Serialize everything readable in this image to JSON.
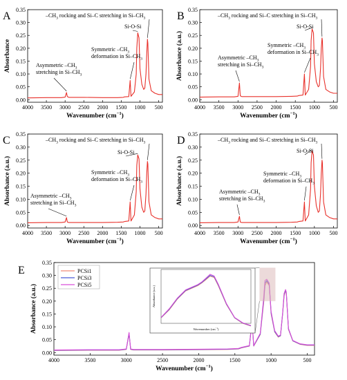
{
  "chart_data": [
    {
      "panel": "A",
      "type": "line",
      "xlabel": "Wavenumber (cm⁻¹)",
      "ylabel": "Absorbance",
      "xlim": [
        4000,
        400
      ],
      "ylim": [
        -0.01,
        0.35
      ],
      "x_reversed": true,
      "xticks": [
        4000,
        3500,
        3000,
        2500,
        2000,
        1500,
        1000,
        500
      ],
      "yticks": [
        0.0,
        0.05,
        0.1,
        0.15,
        0.2,
        0.25,
        0.3,
        0.35
      ],
      "series": [
        {
          "color": "#e8302a",
          "x": [
            4000,
            3500,
            3100,
            3000,
            2962,
            2940,
            2900,
            2500,
            2000,
            1600,
            1450,
            1410,
            1300,
            1262,
            1240,
            1150,
            1100,
            1085,
            1060,
            1025,
            1000,
            950,
            900,
            870,
            840,
            820,
            800,
            790,
            760,
            700,
            600,
            500,
            400
          ],
          "y": [
            0.007,
            0.008,
            0.008,
            0.01,
            0.028,
            0.012,
            0.009,
            0.009,
            0.008,
            0.008,
            0.009,
            0.011,
            0.012,
            0.075,
            0.013,
            0.03,
            0.1,
            0.2,
            0.26,
            0.24,
            0.12,
            0.06,
            0.04,
            0.045,
            0.1,
            0.18,
            0.235,
            0.22,
            0.08,
            0.035,
            0.025,
            0.02,
            0.02
          ]
        }
      ],
      "annotations": [
        {
          "label": "–CH3 rocking and Si–C stretching in Si–CH3",
          "x": 800,
          "y": 0.235
        },
        {
          "label": "Si-O-Si",
          "x": 1060,
          "y": 0.26
        },
        {
          "label": "Symmetric –CH3 deformation in Si–CH3",
          "x": 1262,
          "y": 0.075
        },
        {
          "label": "Asymmetric –CH3 stretching in Si–CH3",
          "x": 2962,
          "y": 0.028
        }
      ]
    },
    {
      "panel": "B",
      "type": "line",
      "xlabel": "Wavenumber (cm⁻¹)",
      "ylabel": "Absorbance (a.u.)",
      "xlim": [
        4000,
        400
      ],
      "ylim": [
        -0.01,
        0.35
      ],
      "x_reversed": true,
      "xticks": [
        4000,
        3500,
        3000,
        2500,
        2000,
        1500,
        1000,
        500
      ],
      "yticks": [
        0.0,
        0.05,
        0.1,
        0.15,
        0.2,
        0.25,
        0.3,
        0.35
      ],
      "series": [
        {
          "color": "#e8302a",
          "x": [
            4000,
            3500,
            3100,
            3000,
            2962,
            2940,
            2900,
            2500,
            2000,
            1600,
            1450,
            1410,
            1300,
            1262,
            1240,
            1150,
            1100,
            1085,
            1060,
            1025,
            1000,
            950,
            900,
            870,
            840,
            820,
            800,
            790,
            760,
            700,
            600,
            500,
            400
          ],
          "y": [
            0.01,
            0.011,
            0.011,
            0.013,
            0.065,
            0.015,
            0.012,
            0.012,
            0.012,
            0.013,
            0.014,
            0.016,
            0.018,
            0.1,
            0.018,
            0.04,
            0.13,
            0.23,
            0.275,
            0.26,
            0.14,
            0.07,
            0.05,
            0.055,
            0.12,
            0.2,
            0.24,
            0.23,
            0.09,
            0.04,
            0.03,
            0.025,
            0.025
          ]
        }
      ],
      "annotations": [
        {
          "label": "–CH3 rocking and Si–C stretching in Si–CH3",
          "x": 800,
          "y": 0.24
        },
        {
          "label": "Si-O-Si",
          "x": 1060,
          "y": 0.275
        },
        {
          "label": "Symmetric –CH3 deformation in Si–CH3",
          "x": 1262,
          "y": 0.1
        },
        {
          "label": "Asymmetric –CH3 stretching in Si–CH3",
          "x": 2962,
          "y": 0.065
        }
      ]
    },
    {
      "panel": "C",
      "type": "line",
      "xlabel": "Wavenumber (cm⁻¹)",
      "ylabel": "Absorbance (a.u.)",
      "xlim": [
        4000,
        400
      ],
      "ylim": [
        -0.01,
        0.35
      ],
      "x_reversed": true,
      "xticks": [
        4000,
        3500,
        3000,
        2500,
        2000,
        1500,
        1000,
        500
      ],
      "yticks": [
        0.0,
        0.05,
        0.1,
        0.15,
        0.2,
        0.25,
        0.3,
        0.35
      ],
      "series": [
        {
          "color": "#e8302a",
          "x": [
            4000,
            3500,
            3100,
            3000,
            2962,
            2940,
            2900,
            2500,
            2000,
            1600,
            1450,
            1410,
            1300,
            1262,
            1240,
            1150,
            1100,
            1085,
            1060,
            1025,
            1000,
            950,
            900,
            870,
            840,
            820,
            800,
            790,
            760,
            700,
            600,
            500,
            400
          ],
          "y": [
            0.01,
            0.011,
            0.011,
            0.013,
            0.03,
            0.013,
            0.011,
            0.011,
            0.011,
            0.012,
            0.013,
            0.015,
            0.017,
            0.09,
            0.017,
            0.04,
            0.13,
            0.23,
            0.27,
            0.255,
            0.14,
            0.07,
            0.05,
            0.055,
            0.12,
            0.2,
            0.245,
            0.235,
            0.09,
            0.04,
            0.03,
            0.025,
            0.025
          ]
        }
      ],
      "annotations": [
        {
          "label": "–CH3 rocking and Si–C stretching in Si–CH3",
          "x": 800,
          "y": 0.245
        },
        {
          "label": "Si-O-Si",
          "x": 1060,
          "y": 0.27
        },
        {
          "label": "Symmetric –CH3 deformation in Si–CH3",
          "x": 1262,
          "y": 0.09
        },
        {
          "label": "Asymmetric –CH3 stretching in Si–CH3",
          "x": 2962,
          "y": 0.03
        }
      ]
    },
    {
      "panel": "D",
      "type": "line",
      "xlabel": "Wavenumber (cm⁻¹)",
      "ylabel": "Absorbance (a.u.)",
      "xlim": [
        4000,
        400
      ],
      "ylim": [
        -0.01,
        0.35
      ],
      "x_reversed": true,
      "xticks": [
        4000,
        3500,
        3000,
        2500,
        2000,
        1500,
        1000,
        500
      ],
      "yticks": [
        0.0,
        0.05,
        0.1,
        0.15,
        0.2,
        0.25,
        0.3,
        0.35
      ],
      "series": [
        {
          "color": "#e8302a",
          "x": [
            4000,
            3500,
            3100,
            3000,
            2962,
            2940,
            2900,
            2500,
            2000,
            1600,
            1450,
            1410,
            1300,
            1262,
            1240,
            1150,
            1100,
            1085,
            1060,
            1025,
            1000,
            950,
            900,
            870,
            840,
            820,
            800,
            790,
            760,
            700,
            600,
            500,
            400
          ],
          "y": [
            0.01,
            0.011,
            0.011,
            0.013,
            0.035,
            0.013,
            0.011,
            0.011,
            0.011,
            0.012,
            0.013,
            0.015,
            0.017,
            0.09,
            0.017,
            0.04,
            0.14,
            0.24,
            0.285,
            0.27,
            0.15,
            0.075,
            0.05,
            0.055,
            0.12,
            0.2,
            0.25,
            0.24,
            0.09,
            0.04,
            0.03,
            0.025,
            0.025
          ]
        }
      ],
      "annotations": [
        {
          "label": "–CH3 rocking and Si–C stretching in Si–CH3",
          "x": 800,
          "y": 0.25
        },
        {
          "label": "Si-O-Si",
          "x": 1060,
          "y": 0.285
        },
        {
          "label": "Symmetric –CH3 deformation in Si–CH3",
          "x": 1262,
          "y": 0.09
        },
        {
          "label": "Asymmetric –CH3 stretching in Si–CH3",
          "x": 2962,
          "y": 0.035
        }
      ]
    },
    {
      "panel": "E",
      "type": "line",
      "xlabel": "Wavenumber (cm⁻¹)",
      "ylabel": "Absorbance (a.u.)",
      "xlim": [
        4000,
        400
      ],
      "ylim": [
        -0.01,
        0.35
      ],
      "x_reversed": true,
      "xticks": [
        4000,
        3500,
        3000,
        2500,
        2000,
        1500,
        1000,
        500
      ],
      "yticks": [
        0.0,
        0.05,
        0.1,
        0.15,
        0.2,
        0.25,
        0.3,
        0.35
      ],
      "legend": "top-left",
      "x": [
        4000,
        3500,
        3100,
        3000,
        2962,
        2940,
        2900,
        2500,
        2000,
        1600,
        1450,
        1410,
        1300,
        1262,
        1240,
        1150,
        1100,
        1085,
        1060,
        1025,
        1000,
        950,
        900,
        870,
        840,
        820,
        800,
        790,
        760,
        700,
        600,
        500,
        400
      ],
      "series": [
        {
          "name": "PCSi1",
          "color": "#f08a78",
          "y": [
            0.008,
            0.009,
            0.009,
            0.012,
            0.072,
            0.012,
            0.01,
            0.01,
            0.011,
            0.012,
            0.014,
            0.018,
            0.025,
            0.12,
            0.025,
            0.07,
            0.2,
            0.26,
            0.275,
            0.26,
            0.15,
            0.08,
            0.06,
            0.065,
            0.15,
            0.22,
            0.24,
            0.23,
            0.09,
            0.045,
            0.032,
            0.028,
            0.028
          ]
        },
        {
          "name": "PCSi3",
          "color": "#4a5ad6",
          "y": [
            0.009,
            0.01,
            0.01,
            0.013,
            0.075,
            0.013,
            0.011,
            0.011,
            0.012,
            0.013,
            0.015,
            0.019,
            0.026,
            0.125,
            0.026,
            0.072,
            0.21,
            0.27,
            0.28,
            0.265,
            0.155,
            0.082,
            0.062,
            0.066,
            0.152,
            0.225,
            0.243,
            0.232,
            0.092,
            0.046,
            0.033,
            0.029,
            0.029
          ]
        },
        {
          "name": "PCSi5",
          "color": "#d94fd9",
          "y": [
            0.01,
            0.011,
            0.011,
            0.014,
            0.078,
            0.014,
            0.012,
            0.012,
            0.013,
            0.014,
            0.016,
            0.02,
            0.027,
            0.128,
            0.027,
            0.075,
            0.22,
            0.28,
            0.285,
            0.27,
            0.16,
            0.085,
            0.064,
            0.068,
            0.155,
            0.23,
            0.245,
            0.235,
            0.094,
            0.047,
            0.034,
            0.03,
            0.03
          ]
        }
      ],
      "inset": {
        "xlabel": "Wavenumber (cm⁻¹)",
        "ylabel": "Absorbance (a.u.)",
        "xlim": [
          1160,
          940
        ],
        "ylim": [
          0.1,
          0.3
        ],
        "x": [
          1160,
          1140,
          1120,
          1100,
          1085,
          1070,
          1060,
          1050,
          1040,
          1030,
          1020,
          1000,
          980,
          960,
          940
        ],
        "series": [
          {
            "name": "PCSi1",
            "y": [
              0.12,
              0.15,
              0.19,
              0.22,
              0.23,
              0.24,
              0.25,
              0.262,
              0.275,
              0.27,
              0.24,
              0.17,
              0.12,
              0.1,
              0.09
            ]
          },
          {
            "name": "PCSi3",
            "y": [
              0.121,
              0.152,
              0.192,
              0.222,
              0.232,
              0.242,
              0.252,
              0.265,
              0.278,
              0.273,
              0.243,
              0.172,
              0.121,
              0.101,
              0.091
            ]
          },
          {
            "name": "PCSi5",
            "y": [
              0.122,
              0.154,
              0.194,
              0.224,
              0.234,
              0.244,
              0.254,
              0.268,
              0.282,
              0.276,
              0.246,
              0.174,
              0.122,
              0.102,
              0.092
            ]
          }
        ]
      }
    }
  ]
}
